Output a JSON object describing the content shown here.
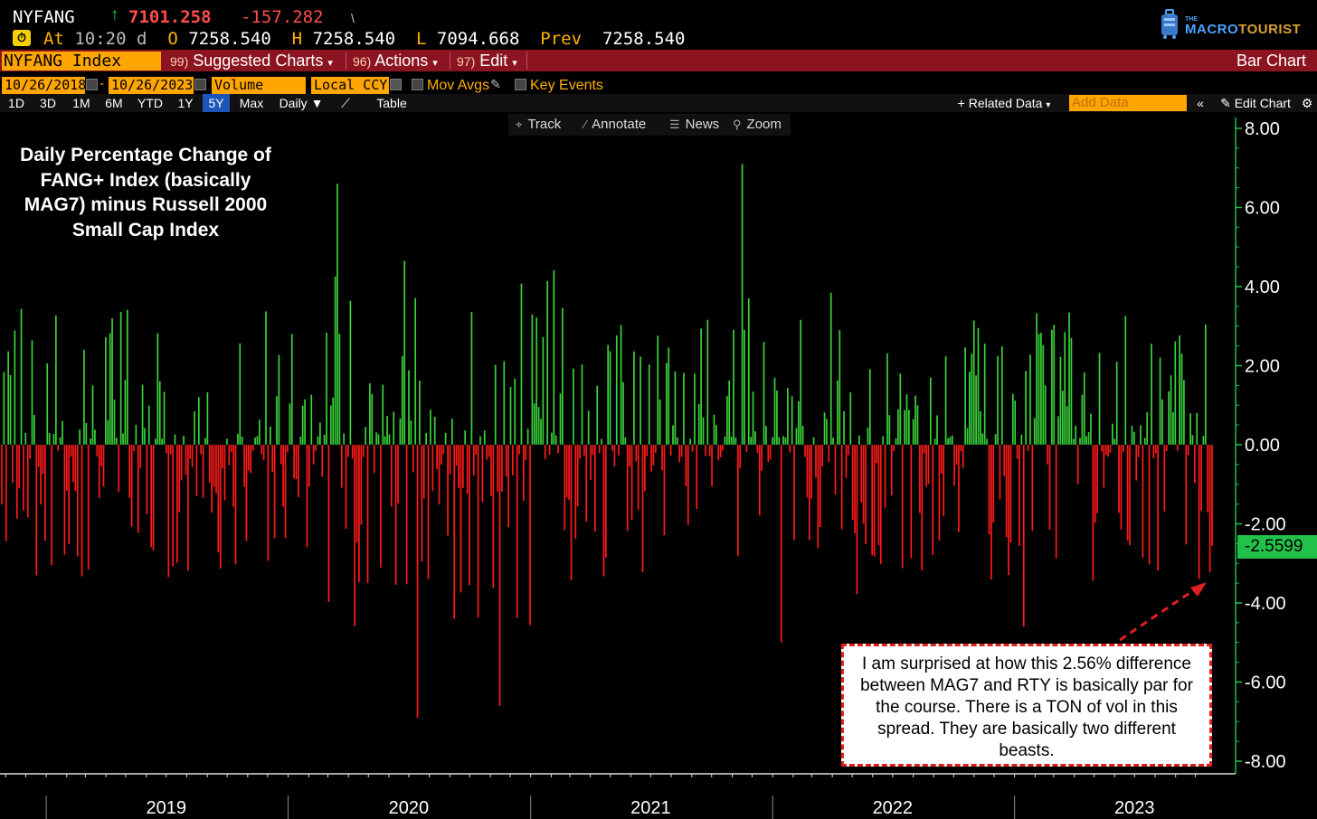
{
  "quote": {
    "ticker": "NYFANG",
    "arrow": "↑",
    "last": "7101.258",
    "change": "-157.282",
    "mark": "\\",
    "at_label": "At",
    "time": "10:20",
    "time_suffix": "d",
    "open_label": "O",
    "open": "7258.540",
    "high_label": "H",
    "high": "7258.540",
    "low_label": "L",
    "low": "7094.668",
    "prev_label": "Prev",
    "prev": "7258.540"
  },
  "logo": {
    "small": "THE",
    "text_a": "MACRO",
    "text_b": "TOURIST"
  },
  "command_bar": {
    "security": "NYFANG Index",
    "items": [
      {
        "num": "99)",
        "label": "Suggested Charts"
      },
      {
        "num": "96)",
        "label": "Actions"
      },
      {
        "num": "97)",
        "label": "Edit"
      }
    ],
    "chart_type": "Bar Chart"
  },
  "settings": {
    "start_date": "10/26/2018",
    "end_date": "10/26/2023",
    "field": "Volume",
    "currency": "Local CCY",
    "mov_avgs": "Mov Avgs",
    "key_events": "Key Events"
  },
  "range": {
    "buttons": [
      "1D",
      "3D",
      "1M",
      "6M",
      "YTD",
      "1Y",
      "5Y",
      "Max"
    ],
    "selected": "5Y",
    "period": "Daily",
    "table": "Table",
    "related_data": "Related Data",
    "add_data_placeholder": "Add Data",
    "edit_chart": "Edit Chart"
  },
  "toolbar": {
    "track": "Track",
    "annotate": "Annotate",
    "news": "News",
    "zoom": "Zoom"
  },
  "annotation_title": "Daily Percentage Change of FANG+ Index (basically MAG7) minus Russell 2000 Small Cap Index",
  "note": "I am surprised at how this 2.56% difference between MAG7 and RTY is basically par for the course. There is a TON of vol in this spread. They are basically two different beasts.",
  "last_value_tag": "-2.5599",
  "colors": {
    "positive": "#3ad23a",
    "negative": "#ff1a1a",
    "accent": "#ffa500",
    "bar": "#8b1420"
  },
  "chart_data": {
    "type": "bar",
    "ylim": [
      -8,
      8
    ],
    "yticks": [
      "8.00",
      "6.00",
      "4.00",
      "2.00",
      "0.00",
      "-2.00",
      "-4.00",
      "-6.00",
      "-8.00"
    ],
    "years": [
      "2019",
      "2020",
      "2021",
      "2022",
      "2023"
    ],
    "last_value": -2.5599,
    "peaks": [
      {
        "date": "2020-03",
        "value": 6.6
      },
      {
        "date": "2020-07",
        "value": -6.9
      },
      {
        "date": "2020-11",
        "value": -6.6
      },
      {
        "date": "2021-11",
        "value": 7.1
      },
      {
        "date": "2022-01",
        "value": -5.0
      },
      {
        "date": "2023-01",
        "value": -4.6
      }
    ]
  }
}
